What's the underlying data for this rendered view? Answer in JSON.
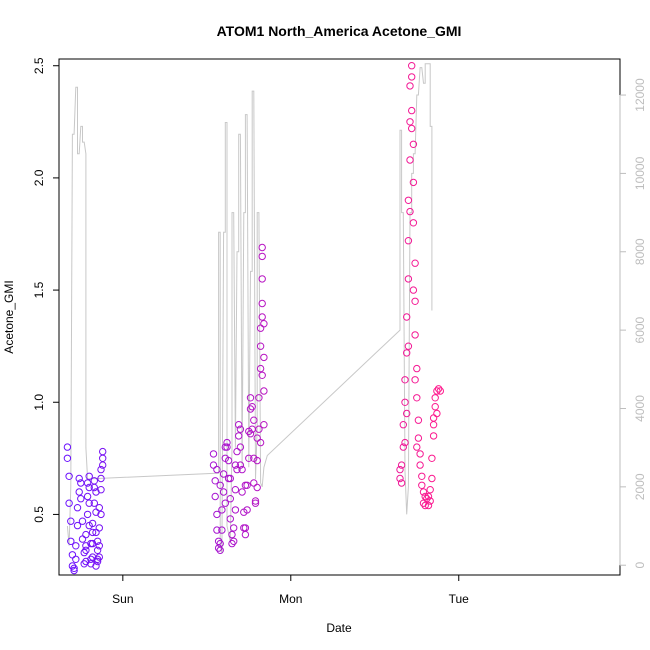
{
  "chart_data": {
    "type": "scatter",
    "title": "ATOM1 North_America Acetone_GMI",
    "xlabel": "Date",
    "ylabel": "Acetone_GMI",
    "x_unit": "day",
    "xlim": [
      -0.38,
      2.96
    ],
    "x_ticks": [
      {
        "value": 0,
        "label": "Sun"
      },
      {
        "value": 1,
        "label": "Mon"
      },
      {
        "value": 2,
        "label": "Tue"
      }
    ],
    "ylim": [
      0.23,
      2.53
    ],
    "y_ticks": [
      0.5,
      1.0,
      1.5,
      2.0,
      2.5
    ],
    "y_tick_labels": [
      "0.5",
      "1.0",
      "1.5",
      "2.0",
      "2.5"
    ],
    "y2lim": [
      -250,
      12920
    ],
    "y2_ticks": [
      0,
      2000,
      4000,
      6000,
      8000,
      10000,
      12000
    ],
    "y2_tick_labels": [
      "0",
      "2000",
      "4000",
      "6000",
      "8000",
      "10000",
      "12000"
    ],
    "grid": false,
    "legend": "none",
    "series": [
      {
        "marker": "open-circle",
        "color_gradient": [
          "#6a11ff",
          "#ff1a8c"
        ],
        "points": [
          [
            -0.33,
            0.8
          ],
          [
            -0.33,
            0.75
          ],
          [
            -0.32,
            0.67
          ],
          [
            -0.32,
            0.55
          ],
          [
            -0.31,
            0.47
          ],
          [
            -0.31,
            0.38
          ],
          [
            -0.3,
            0.32
          ],
          [
            -0.3,
            0.27
          ],
          [
            -0.29,
            0.25
          ],
          [
            -0.29,
            0.26
          ],
          [
            -0.28,
            0.3
          ],
          [
            -0.28,
            0.36
          ],
          [
            -0.27,
            0.45
          ],
          [
            -0.27,
            0.53
          ],
          [
            -0.26,
            0.6
          ],
          [
            -0.26,
            0.66
          ],
          [
            -0.25,
            0.64
          ],
          [
            -0.25,
            0.57
          ],
          [
            -0.24,
            0.47
          ],
          [
            -0.24,
            0.39
          ],
          [
            -0.23,
            0.33
          ],
          [
            -0.23,
            0.28
          ],
          [
            -0.22,
            0.29
          ],
          [
            -0.22,
            0.34
          ],
          [
            -0.22,
            0.41
          ],
          [
            -0.21,
            0.5
          ],
          [
            -0.21,
            0.58
          ],
          [
            -0.21,
            0.64
          ],
          [
            -0.2,
            0.67
          ],
          [
            -0.2,
            0.62
          ],
          [
            -0.2,
            0.55
          ],
          [
            -0.2,
            0.45
          ],
          [
            -0.19,
            0.37
          ],
          [
            -0.19,
            0.3
          ],
          [
            -0.19,
            0.28
          ],
          [
            -0.18,
            0.31
          ],
          [
            -0.18,
            0.37
          ],
          [
            -0.18,
            0.46
          ],
          [
            -0.17,
            0.55
          ],
          [
            -0.17,
            0.62
          ],
          [
            -0.17,
            0.65
          ],
          [
            -0.16,
            0.6
          ],
          [
            -0.16,
            0.51
          ],
          [
            -0.16,
            0.42
          ],
          [
            -0.15,
            0.34
          ],
          [
            -0.15,
            0.29
          ],
          [
            -0.15,
            0.3
          ],
          [
            -0.14,
            0.36
          ],
          [
            -0.14,
            0.44
          ],
          [
            -0.14,
            0.53
          ],
          [
            -0.13,
            0.61
          ],
          [
            -0.13,
            0.66
          ],
          [
            -0.13,
            0.7
          ],
          [
            -0.12,
            0.75
          ],
          [
            -0.22,
            0.36
          ],
          [
            -0.18,
            0.42
          ],
          [
            -0.15,
            0.38
          ],
          [
            -0.12,
            0.78
          ],
          [
            -0.12,
            0.72
          ],
          [
            -0.13,
            0.5
          ],
          [
            -0.14,
            0.31
          ],
          [
            -0.16,
            0.27
          ],
          [
            0.54,
            0.77
          ],
          [
            0.54,
            0.72
          ],
          [
            0.55,
            0.65
          ],
          [
            0.55,
            0.58
          ],
          [
            0.56,
            0.5
          ],
          [
            0.56,
            0.43
          ],
          [
            0.57,
            0.38
          ],
          [
            0.57,
            0.35
          ],
          [
            0.58,
            0.34
          ],
          [
            0.58,
            0.37
          ],
          [
            0.59,
            0.43
          ],
          [
            0.59,
            0.52
          ],
          [
            0.6,
            0.6
          ],
          [
            0.6,
            0.68
          ],
          [
            0.61,
            0.75
          ],
          [
            0.61,
            0.8
          ],
          [
            0.62,
            0.82
          ],
          [
            0.62,
            0.8
          ],
          [
            0.63,
            0.74
          ],
          [
            0.63,
            0.66
          ],
          [
            0.64,
            0.57
          ],
          [
            0.64,
            0.48
          ],
          [
            0.65,
            0.41
          ],
          [
            0.65,
            0.37
          ],
          [
            0.66,
            0.38
          ],
          [
            0.66,
            0.44
          ],
          [
            0.67,
            0.52
          ],
          [
            0.67,
            0.61
          ],
          [
            0.68,
            0.7
          ],
          [
            0.68,
            0.78
          ],
          [
            0.69,
            0.85
          ],
          [
            0.69,
            0.9
          ],
          [
            0.7,
            0.88
          ],
          [
            0.7,
            0.8
          ],
          [
            0.71,
            0.7
          ],
          [
            0.71,
            0.6
          ],
          [
            0.72,
            0.51
          ],
          [
            0.72,
            0.44
          ],
          [
            0.73,
            0.41
          ],
          [
            0.73,
            0.44
          ],
          [
            0.74,
            0.52
          ],
          [
            0.74,
            0.63
          ],
          [
            0.75,
            0.75
          ],
          [
            0.75,
            0.87
          ],
          [
            0.76,
            0.97
          ],
          [
            0.76,
            1.02
          ],
          [
            0.77,
            0.98
          ],
          [
            0.77,
            0.88
          ],
          [
            0.78,
            0.75
          ],
          [
            0.78,
            0.64
          ],
          [
            0.79,
            0.56
          ],
          [
            0.79,
            0.55
          ],
          [
            0.8,
            0.62
          ],
          [
            0.8,
            0.74
          ],
          [
            0.81,
            0.88
          ],
          [
            0.81,
            1.02
          ],
          [
            0.82,
            1.15
          ],
          [
            0.82,
            1.25
          ],
          [
            0.82,
            1.33
          ],
          [
            0.83,
            1.38
          ],
          [
            0.83,
            1.44
          ],
          [
            0.83,
            1.55
          ],
          [
            0.83,
            1.65
          ],
          [
            0.83,
            1.69
          ],
          [
            0.84,
            1.35
          ],
          [
            0.84,
            1.2
          ],
          [
            0.84,
            1.05
          ],
          [
            0.84,
            0.9
          ],
          [
            0.83,
            1.12
          ],
          [
            0.82,
            0.82
          ],
          [
            0.8,
            0.84
          ],
          [
            0.78,
            0.92
          ],
          [
            0.76,
            0.86
          ],
          [
            0.73,
            0.63
          ],
          [
            0.7,
            0.72
          ],
          [
            0.67,
            0.72
          ],
          [
            0.64,
            0.66
          ],
          [
            0.61,
            0.55
          ],
          [
            0.58,
            0.63
          ],
          [
            0.56,
            0.7
          ],
          [
            1.65,
            0.7
          ],
          [
            1.65,
            0.66
          ],
          [
            1.66,
            0.64
          ],
          [
            1.66,
            0.72
          ],
          [
            1.67,
            0.8
          ],
          [
            1.67,
            0.9
          ],
          [
            1.68,
            1.0
          ],
          [
            1.68,
            1.1
          ],
          [
            1.69,
            1.22
          ],
          [
            1.69,
            1.38
          ],
          [
            1.7,
            1.55
          ],
          [
            1.7,
            1.72
          ],
          [
            1.7,
            1.9
          ],
          [
            1.71,
            2.08
          ],
          [
            1.71,
            2.25
          ],
          [
            1.71,
            2.41
          ],
          [
            1.72,
            2.5
          ],
          [
            1.72,
            2.45
          ],
          [
            1.72,
            2.3
          ],
          [
            1.73,
            2.15
          ],
          [
            1.73,
            1.98
          ],
          [
            1.73,
            1.8
          ],
          [
            1.74,
            1.62
          ],
          [
            1.74,
            1.45
          ],
          [
            1.74,
            1.3
          ],
          [
            1.75,
            1.15
          ],
          [
            1.75,
            1.02
          ],
          [
            1.76,
            0.92
          ],
          [
            1.76,
            0.84
          ],
          [
            1.77,
            0.77
          ],
          [
            1.77,
            0.72
          ],
          [
            1.78,
            0.67
          ],
          [
            1.78,
            0.63
          ],
          [
            1.79,
            0.6
          ],
          [
            1.8,
            0.58
          ],
          [
            1.81,
            0.57
          ],
          [
            1.82,
            0.58
          ],
          [
            1.83,
            0.61
          ],
          [
            1.84,
            0.66
          ],
          [
            1.84,
            0.75
          ],
          [
            1.85,
            0.85
          ],
          [
            1.85,
            0.93
          ],
          [
            1.86,
            0.98
          ],
          [
            1.86,
            1.02
          ],
          [
            1.87,
            1.05
          ],
          [
            1.88,
            1.06
          ],
          [
            1.89,
            1.05
          ],
          [
            1.71,
            1.85
          ],
          [
            1.72,
            2.22
          ],
          [
            1.73,
            1.5
          ],
          [
            1.74,
            1.1
          ],
          [
            1.75,
            0.8
          ],
          [
            1.7,
            1.25
          ],
          [
            1.69,
            0.95
          ],
          [
            1.68,
            0.82
          ],
          [
            1.79,
            0.55
          ],
          [
            1.8,
            0.54
          ],
          [
            1.82,
            0.54
          ],
          [
            1.83,
            0.56
          ],
          [
            1.85,
            0.9
          ],
          [
            1.87,
            0.95
          ]
        ]
      },
      {
        "name": "",
        "axis": "right",
        "style": "line",
        "color": "#c8c8c8",
        "points": [
          [
            -0.33,
            1000
          ],
          [
            -0.32,
            500
          ],
          [
            -0.31,
            2000
          ],
          [
            -0.3,
            11000
          ],
          [
            -0.29,
            11000
          ],
          [
            -0.28,
            12200
          ],
          [
            -0.27,
            12200
          ],
          [
            -0.27,
            10500
          ],
          [
            -0.26,
            10500
          ],
          [
            -0.25,
            11200
          ],
          [
            -0.24,
            11200
          ],
          [
            -0.24,
            10800
          ],
          [
            -0.23,
            10800
          ],
          [
            -0.22,
            10500
          ],
          [
            -0.22,
            3000
          ],
          [
            -0.21,
            2200
          ],
          [
            0.57,
            2350
          ],
          [
            0.57,
            8500
          ],
          [
            0.58,
            8500
          ],
          [
            0.58,
            500
          ],
          [
            0.59,
            300
          ],
          [
            0.6,
            8500
          ],
          [
            0.61,
            8500
          ],
          [
            0.61,
            11300
          ],
          [
            0.62,
            11300
          ],
          [
            0.62,
            1000
          ],
          [
            0.64,
            600
          ],
          [
            0.65,
            3000
          ],
          [
            0.65,
            9000
          ],
          [
            0.66,
            9000
          ],
          [
            0.67,
            3000
          ],
          [
            0.68,
            8000
          ],
          [
            0.69,
            8000
          ],
          [
            0.69,
            11000
          ],
          [
            0.7,
            11000
          ],
          [
            0.71,
            2500
          ],
          [
            0.72,
            9000
          ],
          [
            0.73,
            9000
          ],
          [
            0.73,
            11500
          ],
          [
            0.74,
            11500
          ],
          [
            0.75,
            2500
          ],
          [
            0.76,
            7500
          ],
          [
            0.77,
            7500
          ],
          [
            0.77,
            12100
          ],
          [
            0.78,
            12100
          ],
          [
            0.79,
            2200
          ],
          [
            0.8,
            3500
          ],
          [
            0.8,
            9000
          ],
          [
            0.81,
            9000
          ],
          [
            0.82,
            2100
          ],
          [
            0.83,
            2000
          ],
          [
            0.84,
            2500
          ],
          [
            0.86,
            2800
          ],
          [
            1.65,
            6000
          ],
          [
            1.65,
            11100
          ],
          [
            1.66,
            11100
          ],
          [
            1.66,
            9000
          ],
          [
            1.67,
            9000
          ],
          [
            1.68,
            2400
          ],
          [
            1.69,
            1300
          ],
          [
            1.7,
            2000
          ],
          [
            1.71,
            9000
          ],
          [
            1.72,
            9000
          ],
          [
            1.72,
            10000
          ],
          [
            1.73,
            10000
          ],
          [
            1.73,
            10500
          ],
          [
            1.74,
            10500
          ],
          [
            1.75,
            12000
          ],
          [
            1.76,
            12000
          ],
          [
            1.77,
            12700
          ],
          [
            1.78,
            12700
          ],
          [
            1.79,
            12300
          ],
          [
            1.8,
            12300
          ],
          [
            1.8,
            12800
          ],
          [
            1.83,
            12800
          ],
          [
            1.83,
            11200
          ],
          [
            1.84,
            11200
          ],
          [
            1.84,
            6500
          ]
        ]
      }
    ]
  }
}
